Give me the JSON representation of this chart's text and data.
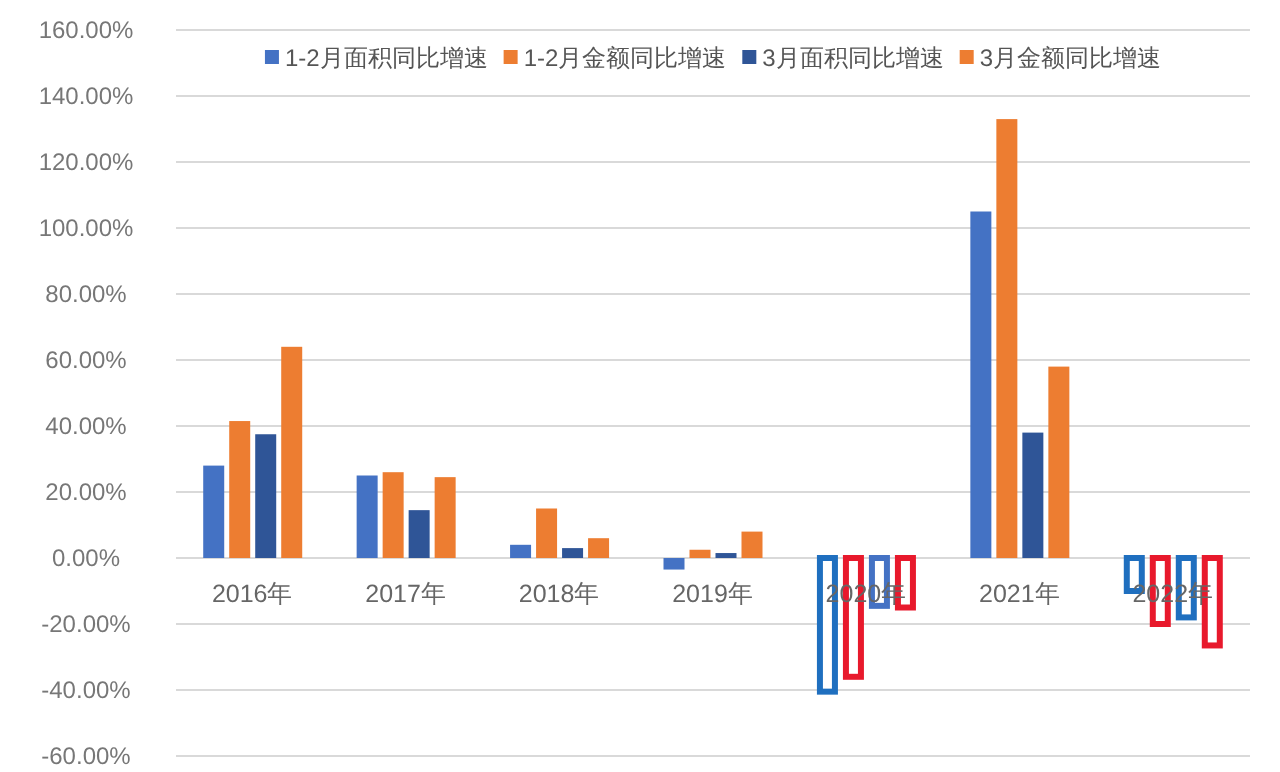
{
  "chart_data": {
    "type": "bar",
    "categories": [
      "2016年",
      "2017年",
      "2018年",
      "2019年",
      "2020年",
      "2021年",
      "2022年"
    ],
    "series": [
      {
        "name": "1-2月面积同比增速",
        "color": "#4472c4",
        "values": [
          28,
          25,
          4,
          -3.5,
          -40.5,
          105,
          -10
        ],
        "colors": [
          null,
          null,
          null,
          null,
          "#1f6fbf",
          null,
          "#1f6fbf"
        ]
      },
      {
        "name": "1-2月金额同比增速",
        "color": "#ed7d31",
        "values": [
          41.5,
          26,
          15,
          2.5,
          -36,
          133,
          -20
        ],
        "colors": [
          null,
          null,
          null,
          null,
          "#e8192c",
          null,
          "#e8192c"
        ]
      },
      {
        "name": "3月面积同比增速",
        "color": "#2f5597",
        "values": [
          37.5,
          14.5,
          3,
          1.5,
          -14.5,
          38,
          -18
        ],
        "colors": [
          null,
          null,
          null,
          null,
          "#4472c4",
          null,
          "#1f6fbf"
        ]
      },
      {
        "name": "3月金额同比增速",
        "color": "#ed7d31",
        "values": [
          64,
          24.5,
          6,
          8,
          -15,
          58,
          -26.5
        ],
        "colors": [
          null,
          null,
          null,
          null,
          "#e8192c",
          null,
          "#e8192c"
        ]
      }
    ],
    "ylim": [
      -60,
      160
    ],
    "yticks": [
      {
        "value": -60,
        "label": "-60.00%"
      },
      {
        "value": -40,
        "label": "-40.00%"
      },
      {
        "value": -20,
        "label": "-20.00%"
      },
      {
        "value": 0,
        "label": "0.00%"
      },
      {
        "value": 20,
        "label": "20.00%"
      },
      {
        "value": 40,
        "label": "40.00%"
      },
      {
        "value": 60,
        "label": "60.00%"
      },
      {
        "value": 80,
        "label": "80.00%"
      },
      {
        "value": 100,
        "label": "100.00%"
      },
      {
        "value": 120,
        "label": "120.00%"
      },
      {
        "value": 140,
        "label": "140.00%"
      },
      {
        "value": 160,
        "label": "160.00%"
      }
    ],
    "grid": "y",
    "legend": "top"
  }
}
